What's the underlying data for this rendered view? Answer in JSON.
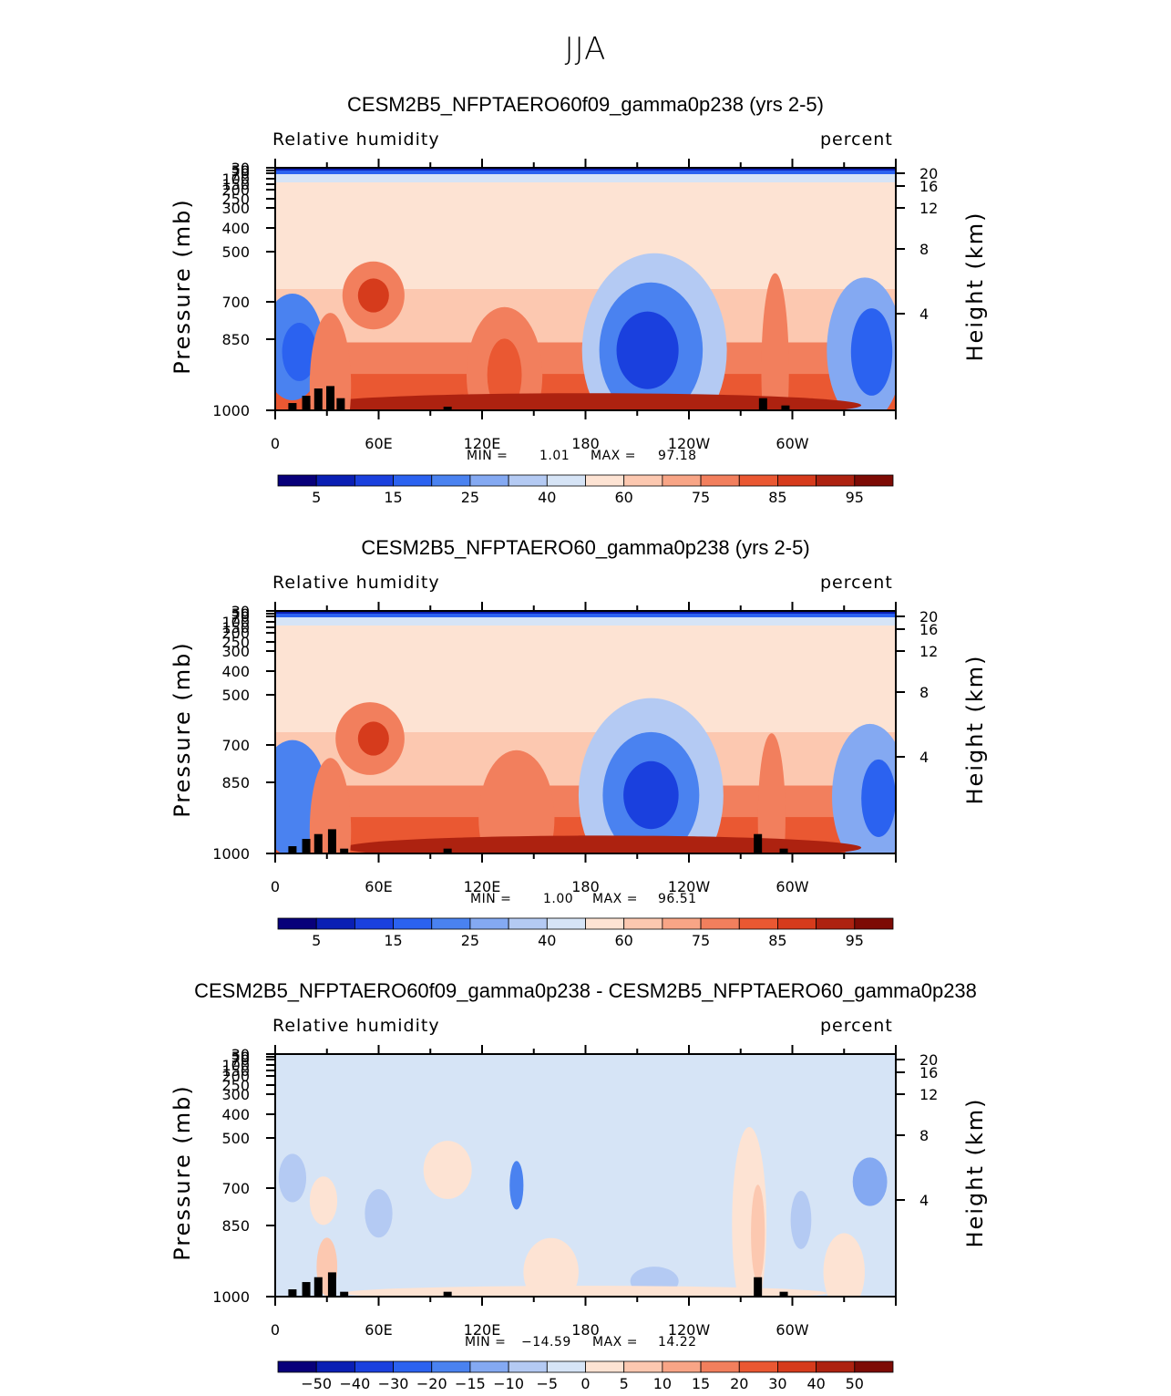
{
  "main_title": "JJA",
  "chart_data": [
    {
      "type": "heatmap",
      "title": "CESM2B5_NFPTAERO60f09_gamma0p238 (yrs 2-5)",
      "left_label": "Relative humidity",
      "right_label": "percent",
      "ylabel": "Pressure (mb)",
      "ylabel_right": "Height (km)",
      "x_ticks": [
        "0",
        "60E",
        "120E",
        "180",
        "120W",
        "60W"
      ],
      "y_ticks": [
        "30",
        "50",
        "70",
        "100",
        "150",
        "200",
        "250",
        "300",
        "400",
        "500",
        "700",
        "850",
        "1000"
      ],
      "y_ticks_right": [
        "20",
        "16",
        "12",
        "8",
        "4"
      ],
      "min_label": "MIN =",
      "min_value": "1.01",
      "max_label": "MAX =",
      "max_value": "97.18",
      "colorbar_labels": [
        "5",
        "15",
        "25",
        "40",
        "60",
        "75",
        "85",
        "95"
      ],
      "colors": [
        "#08007a",
        "#0a1fb4",
        "#1a40de",
        "#2b62f0",
        "#4a82f0",
        "#84a9f2",
        "#b4caf3",
        "#d6e4f6",
        "#fde3d3",
        "#fcc8b0",
        "#f8a586",
        "#f27f5d",
        "#ea5832",
        "#d63b1c",
        "#ad2210",
        "#7d0b05"
      ],
      "blobs": [
        {
          "x": 10,
          "y": 400,
          "rx": 18,
          "ry": 0.22,
          "level": 4
        },
        {
          "x": 14,
          "y": 430,
          "rx": 10,
          "ry": 0.12,
          "level": 3
        },
        {
          "x": 57,
          "y": 190,
          "rx": 18,
          "ry": 0.14,
          "level": 11
        },
        {
          "x": 57,
          "y": 190,
          "rx": 9,
          "ry": 0.07,
          "level": 13
        },
        {
          "x": 133,
          "y": 600,
          "rx": 22,
          "ry": 0.28,
          "level": 11
        },
        {
          "x": 133,
          "y": 600,
          "rx": 10,
          "ry": 0.15,
          "level": 12
        },
        {
          "x": 220,
          "y": 420,
          "rx": 42,
          "ry": 0.4,
          "level": 6
        },
        {
          "x": 218,
          "y": 420,
          "rx": 30,
          "ry": 0.28,
          "level": 4
        },
        {
          "x": 216,
          "y": 420,
          "rx": 18,
          "ry": 0.16,
          "level": 2
        },
        {
          "x": 290,
          "y": 560,
          "rx": 8,
          "ry": 0.4,
          "level": 11
        },
        {
          "x": 342,
          "y": 420,
          "rx": 22,
          "ry": 0.3,
          "level": 5
        },
        {
          "x": 346,
          "y": 430,
          "rx": 12,
          "ry": 0.18,
          "level": 3
        },
        {
          "x": 180,
          "y": 930,
          "rx": 160,
          "ry": 0.05,
          "level": 14
        },
        {
          "x": 32,
          "y": 700,
          "rx": 12,
          "ry": 0.3,
          "level": 11
        }
      ],
      "topography": [
        {
          "lon": 10,
          "height": 0.03
        },
        {
          "lon": 18,
          "height": 0.06
        },
        {
          "lon": 25,
          "height": 0.09
        },
        {
          "lon": 32,
          "height": 0.1
        },
        {
          "lon": 38,
          "height": 0.05
        },
        {
          "lon": 100,
          "height": 0.015
        },
        {
          "lon": 283,
          "height": 0.05
        },
        {
          "lon": 296,
          "height": 0.02
        }
      ]
    },
    {
      "type": "heatmap",
      "title": "CESM2B5_NFPTAERO60_gamma0p238 (yrs 2-5)",
      "left_label": "Relative humidity",
      "right_label": "percent",
      "ylabel": "Pressure (mb)",
      "ylabel_right": "Height (km)",
      "x_ticks": [
        "0",
        "60E",
        "120E",
        "180",
        "120W",
        "60W"
      ],
      "y_ticks": [
        "30",
        "50",
        "70",
        "100",
        "150",
        "200",
        "250",
        "300",
        "400",
        "500",
        "700",
        "850",
        "1000"
      ],
      "y_ticks_right": [
        "20",
        "16",
        "12",
        "8",
        "4"
      ],
      "min_label": "MIN =",
      "min_value": "1.00",
      "max_label": "MAX =",
      "max_value": "96.51",
      "colorbar_labels": [
        "5",
        "15",
        "25",
        "40",
        "60",
        "75",
        "85",
        "95"
      ],
      "colors": [
        "#08007a",
        "#0a1fb4",
        "#1a40de",
        "#2b62f0",
        "#4a82f0",
        "#84a9f2",
        "#b4caf3",
        "#d6e4f6",
        "#fde3d3",
        "#fcc8b0",
        "#f8a586",
        "#f27f5d",
        "#ea5832",
        "#d63b1c",
        "#ad2210",
        "#7d0b05"
      ],
      "blobs": [
        {
          "x": 10,
          "y": 450,
          "rx": 20,
          "ry": 0.24,
          "level": 4
        },
        {
          "x": 55,
          "y": 190,
          "rx": 20,
          "ry": 0.15,
          "level": 11
        },
        {
          "x": 57,
          "y": 190,
          "rx": 9,
          "ry": 0.07,
          "level": 13
        },
        {
          "x": 140,
          "y": 600,
          "rx": 22,
          "ry": 0.28,
          "level": 11
        },
        {
          "x": 218,
          "y": 430,
          "rx": 42,
          "ry": 0.4,
          "level": 6
        },
        {
          "x": 218,
          "y": 430,
          "rx": 28,
          "ry": 0.26,
          "level": 4
        },
        {
          "x": 218,
          "y": 430,
          "rx": 16,
          "ry": 0.14,
          "level": 2
        },
        {
          "x": 288,
          "y": 600,
          "rx": 8,
          "ry": 0.35,
          "level": 11
        },
        {
          "x": 345,
          "y": 440,
          "rx": 22,
          "ry": 0.3,
          "level": 5
        },
        {
          "x": 350,
          "y": 450,
          "rx": 10,
          "ry": 0.16,
          "level": 3
        },
        {
          "x": 190,
          "y": 920,
          "rx": 150,
          "ry": 0.05,
          "level": 14
        },
        {
          "x": 32,
          "y": 720,
          "rx": 12,
          "ry": 0.3,
          "level": 11
        }
      ],
      "topography": [
        {
          "lon": 10,
          "height": 0.03
        },
        {
          "lon": 18,
          "height": 0.06
        },
        {
          "lon": 25,
          "height": 0.08
        },
        {
          "lon": 33,
          "height": 0.1
        },
        {
          "lon": 40,
          "height": 0.02
        },
        {
          "lon": 100,
          "height": 0.02
        },
        {
          "lon": 280,
          "height": 0.08
        },
        {
          "lon": 295,
          "height": 0.02
        }
      ]
    },
    {
      "type": "heatmap",
      "title": "CESM2B5_NFPTAERO60f09_gamma0p238 - CESM2B5_NFPTAERO60_gamma0p238",
      "left_label": "Relative humidity",
      "right_label": "percent",
      "ylabel": "Pressure (mb)",
      "ylabel_right": "Height (km)",
      "x_ticks": [
        "0",
        "60E",
        "120E",
        "180",
        "120W",
        "60W"
      ],
      "y_ticks": [
        "30",
        "50",
        "70",
        "100",
        "150",
        "200",
        "250",
        "300",
        "400",
        "500",
        "700",
        "850",
        "1000"
      ],
      "y_ticks_right": [
        "20",
        "16",
        "12",
        "8",
        "4"
      ],
      "min_label": "MIN =",
      "min_value": "−14.59",
      "max_label": "MAX =",
      "max_value": "14.22",
      "colorbar_labels": [
        "−50",
        "−40",
        "−30",
        "−20",
        "−15",
        "−10",
        "−5",
        "0",
        "5",
        "10",
        "15",
        "20",
        "30",
        "40",
        "50"
      ],
      "colors": [
        "#08007a",
        "#0a1fb4",
        "#1a40de",
        "#2b62f0",
        "#4a82f0",
        "#84a9f2",
        "#b4caf3",
        "#d6e4f6",
        "#fde3d3",
        "#fcc8b0",
        "#f8a586",
        "#f27f5d",
        "#ea5832",
        "#d63b1c",
        "#ad2210",
        "#7d0b05"
      ],
      "background_level": 7,
      "blobs": [
        {
          "x": 345,
          "y": 190,
          "rx": 10,
          "ry": 0.1,
          "level": 5
        },
        {
          "x": 10,
          "y": 180,
          "rx": 8,
          "ry": 0.1,
          "level": 6
        },
        {
          "x": 140,
          "y": 200,
          "rx": 4,
          "ry": 0.1,
          "level": 4
        },
        {
          "x": 60,
          "y": 300,
          "rx": 8,
          "ry": 0.1,
          "level": 6
        },
        {
          "x": 28,
          "y": 250,
          "rx": 8,
          "ry": 0.1,
          "level": 8
        },
        {
          "x": 100,
          "y": 160,
          "rx": 14,
          "ry": 0.12,
          "level": 8
        },
        {
          "x": 275,
          "y": 350,
          "rx": 10,
          "ry": 0.4,
          "level": 8
        },
        {
          "x": 280,
          "y": 400,
          "rx": 4,
          "ry": 0.2,
          "level": 9
        },
        {
          "x": 160,
          "y": 700,
          "rx": 16,
          "ry": 0.14,
          "level": 8
        },
        {
          "x": 330,
          "y": 700,
          "rx": 12,
          "ry": 0.16,
          "level": 8
        },
        {
          "x": 30,
          "y": 650,
          "rx": 6,
          "ry": 0.12,
          "level": 9
        },
        {
          "x": 220,
          "y": 800,
          "rx": 14,
          "ry": 0.06,
          "level": 6
        },
        {
          "x": 305,
          "y": 330,
          "rx": 6,
          "ry": 0.12,
          "level": 6
        },
        {
          "x": 180,
          "y": 950,
          "rx": 140,
          "ry": 0.03,
          "level": 8
        }
      ],
      "topography": [
        {
          "lon": 10,
          "height": 0.03
        },
        {
          "lon": 18,
          "height": 0.06
        },
        {
          "lon": 25,
          "height": 0.08
        },
        {
          "lon": 33,
          "height": 0.1
        },
        {
          "lon": 40,
          "height": 0.02
        },
        {
          "lon": 100,
          "height": 0.02
        },
        {
          "lon": 280,
          "height": 0.08
        },
        {
          "lon": 295,
          "height": 0.02
        }
      ]
    }
  ]
}
